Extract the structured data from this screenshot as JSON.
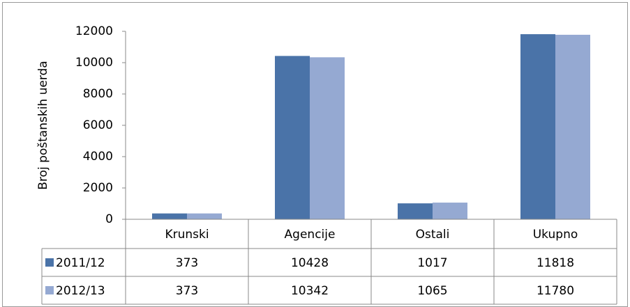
{
  "chart_data": {
    "type": "bar",
    "y_label": "Broj poštanskih uerda",
    "categories": [
      "Krunski",
      "Agencije",
      "Ostali",
      "Ukupno"
    ],
    "series": [
      {
        "name": "2011/12",
        "color": "#4a73a8",
        "values": [
          373,
          10428,
          1017,
          11818
        ]
      },
      {
        "name": "2012/13",
        "color": "#95a9d2",
        "values": [
          373,
          10342,
          1065,
          11780
        ]
      }
    ],
    "ylim": [
      0,
      12000
    ],
    "yticks": [
      0,
      2000,
      4000,
      6000,
      8000,
      10000,
      12000
    ],
    "data_table": true
  }
}
